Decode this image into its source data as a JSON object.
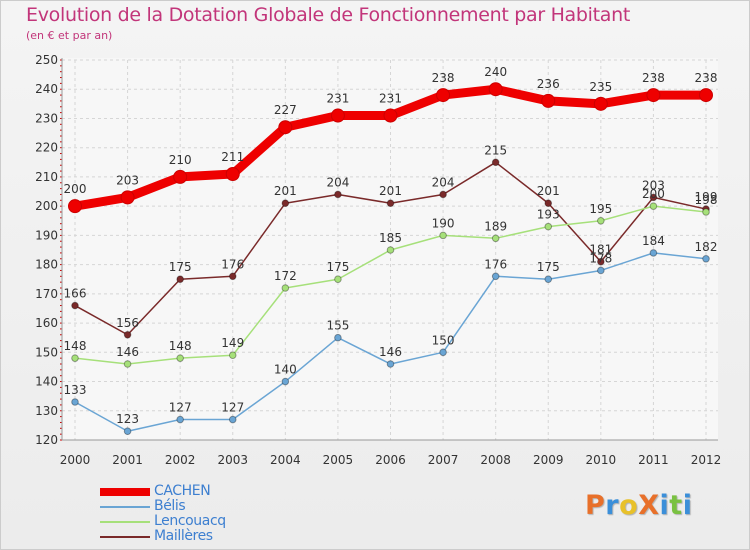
{
  "title": "Evolution de la Dotation Globale de Fonctionnement par Habitant",
  "subtitle": "(en € et par an)",
  "logo": {
    "text": "ProXiti",
    "colors": [
      "#e8702a",
      "#3b8fd9",
      "#e8c12a",
      "#e8702a",
      "#3b8fd9",
      "#7ac142",
      "#3b8fd9"
    ]
  },
  "chart_data": {
    "type": "line",
    "title": "Evolution de la Dotation Globale de Fonctionnement par Habitant",
    "subtitle": "(en € et par an)",
    "x": [
      "2000",
      "2001",
      "2002",
      "2003",
      "2004",
      "2005",
      "2006",
      "2007",
      "2008",
      "2009",
      "2010",
      "2011",
      "2012"
    ],
    "ylim": [
      120,
      250
    ],
    "yticks": [
      120,
      130,
      140,
      150,
      160,
      170,
      180,
      190,
      200,
      210,
      220,
      230,
      240,
      250
    ],
    "grid": true,
    "legend_position": "bottom-left",
    "series": [
      {
        "name": "CACHEN",
        "color": "#ee0000",
        "values": [
          200,
          203,
          210,
          211,
          227,
          231,
          231,
          238,
          240,
          236,
          235,
          238,
          238
        ]
      },
      {
        "name": "Bélis",
        "color": "#6aa5d4",
        "values": [
          133,
          123,
          127,
          127,
          140,
          155,
          146,
          150,
          176,
          175,
          178,
          184,
          182
        ]
      },
      {
        "name": "Lencouacq",
        "color": "#a6e07a",
        "values": [
          148,
          146,
          148,
          149,
          172,
          175,
          185,
          190,
          189,
          193,
          195,
          200,
          198
        ]
      },
      {
        "name": "Maillères",
        "color": "#7a2a2a",
        "values": [
          166,
          156,
          175,
          176,
          201,
          204,
          201,
          204,
          215,
          201,
          181,
          203,
          199
        ]
      }
    ]
  }
}
